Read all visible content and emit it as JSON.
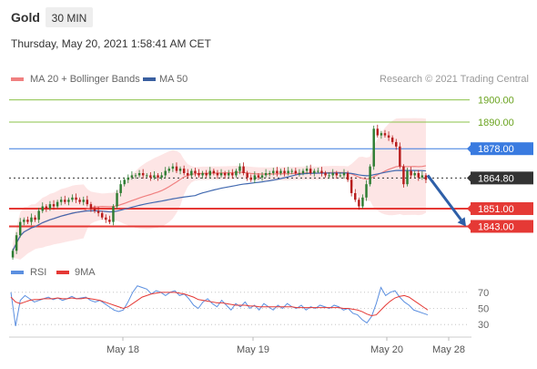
{
  "header": {
    "instrument": "Gold",
    "timeframe": "30 MIN",
    "datetime": "Thursday, May 20, 2021 1:58:41 AM CET",
    "credit": "Research © 2021 Trading Central"
  },
  "colors": {
    "up_candle": "#2e7d32",
    "down_candle": "#b71c1c",
    "ma20": "#f08080",
    "bollinger_fill": "#fde0e0",
    "ma50": "#4169b0",
    "resistance_green": "#8bc34a",
    "resistance_blue": "#3a7be0",
    "support_red": "#e53935",
    "current_price_box": "#333333",
    "arrow": "#2e5fa8",
    "rsi": "#5b8fe0",
    "rsi_ma": "#e53935"
  },
  "chart_data": [
    {
      "type": "candlestick",
      "legend": [
        {
          "name": "MA 20 + Bollinger Bands",
          "color": "#f08080"
        },
        {
          "name": "MA 50",
          "color": "#3a5fa0"
        }
      ],
      "ylim": [
        1828,
        1906
      ],
      "x_ticks": [
        "May 18",
        "May 19",
        "May 20",
        "May 28"
      ],
      "levels": [
        {
          "value": 1900.0,
          "label": "1900.00",
          "kind": "resistance",
          "color": "#8bc34a"
        },
        {
          "value": 1890.0,
          "label": "1890.00",
          "kind": "resistance",
          "color": "#8bc34a"
        },
        {
          "value": 1878.0,
          "label": "1878.00",
          "kind": "pivot",
          "color": "#3a7be0"
        },
        {
          "value": 1864.8,
          "label": "1864.80",
          "kind": "current",
          "color": "#333333"
        },
        {
          "value": 1851.0,
          "label": "1851.00",
          "kind": "support",
          "color": "#e53935"
        },
        {
          "value": 1843.0,
          "label": "1843.00",
          "kind": "support",
          "color": "#e53935"
        }
      ],
      "forecast_arrow": {
        "from": 1866,
        "to": 1843
      },
      "close": [
        1832,
        1839,
        1845,
        1846,
        1845,
        1847,
        1846,
        1850,
        1852,
        1851,
        1853,
        1852,
        1854,
        1855,
        1854,
        1855,
        1856,
        1855,
        1854,
        1855,
        1853,
        1851,
        1850,
        1849,
        1847,
        1846,
        1845,
        1852,
        1858,
        1862,
        1864,
        1865,
        1866,
        1866,
        1867,
        1866,
        1866,
        1865,
        1866,
        1865,
        1866,
        1868,
        1869,
        1870,
        1868,
        1869,
        1867,
        1866,
        1868,
        1867,
        1866,
        1867,
        1866,
        1868,
        1867,
        1866,
        1867,
        1866,
        1867,
        1866,
        1868,
        1870,
        1867,
        1865,
        1864,
        1866,
        1865,
        1866,
        1867,
        1867,
        1868,
        1867,
        1868,
        1867,
        1868,
        1868,
        1867,
        1867,
        1868,
        1869,
        1867,
        1868,
        1868,
        1867,
        1866,
        1866,
        1867,
        1866,
        1866,
        1867,
        1864,
        1858,
        1855,
        1852,
        1856,
        1862,
        1870,
        1887,
        1884,
        1885,
        1884,
        1883,
        1881,
        1879,
        1870,
        1862,
        1868,
        1866,
        1867,
        1865,
        1866,
        1864
      ]
    },
    {
      "type": "line",
      "legend": [
        {
          "name": "RSI",
          "color": "#5b8fe0"
        },
        {
          "name": "9MA",
          "color": "#e53935"
        }
      ],
      "ylim": [
        20,
        80
      ],
      "y_ticks": [
        70,
        50,
        30
      ],
      "series": [
        {
          "name": "RSI",
          "values": [
            70,
            28,
            60,
            66,
            62,
            58,
            60,
            62,
            64,
            61,
            63,
            60,
            62,
            65,
            62,
            63,
            64,
            60,
            58,
            60,
            56,
            52,
            48,
            46,
            48,
            58,
            70,
            78,
            76,
            74,
            68,
            72,
            70,
            66,
            70,
            72,
            66,
            68,
            62,
            54,
            50,
            58,
            62,
            56,
            52,
            60,
            54,
            48,
            56,
            52,
            58,
            50,
            54,
            48,
            56,
            52,
            48,
            54,
            50,
            56,
            52,
            50,
            54,
            48,
            52,
            50,
            54,
            52,
            50,
            54,
            52,
            48,
            50,
            44,
            42,
            36,
            32,
            40,
            56,
            76,
            66,
            70,
            72,
            64,
            58,
            54,
            48,
            46,
            44,
            42
          ]
        },
        {
          "name": "9MA",
          "values": [
            64,
            58,
            56,
            58,
            60,
            61,
            61,
            62,
            62,
            62,
            63,
            62,
            62,
            63,
            62,
            62,
            63,
            62,
            61,
            60,
            58,
            56,
            54,
            52,
            50,
            52,
            56,
            60,
            64,
            66,
            68,
            69,
            70,
            70,
            70,
            70,
            69,
            68,
            66,
            64,
            61,
            60,
            59,
            58,
            57,
            57,
            56,
            55,
            54,
            54,
            54,
            53,
            53,
            52,
            52,
            52,
            52,
            52,
            52,
            52,
            52,
            51,
            51,
            51,
            51,
            51,
            51,
            51,
            51,
            51,
            51,
            50,
            50,
            49,
            48,
            46,
            43,
            41,
            42,
            48,
            54,
            59,
            63,
            65,
            66,
            64,
            60,
            56,
            52,
            48
          ]
        }
      ]
    }
  ]
}
